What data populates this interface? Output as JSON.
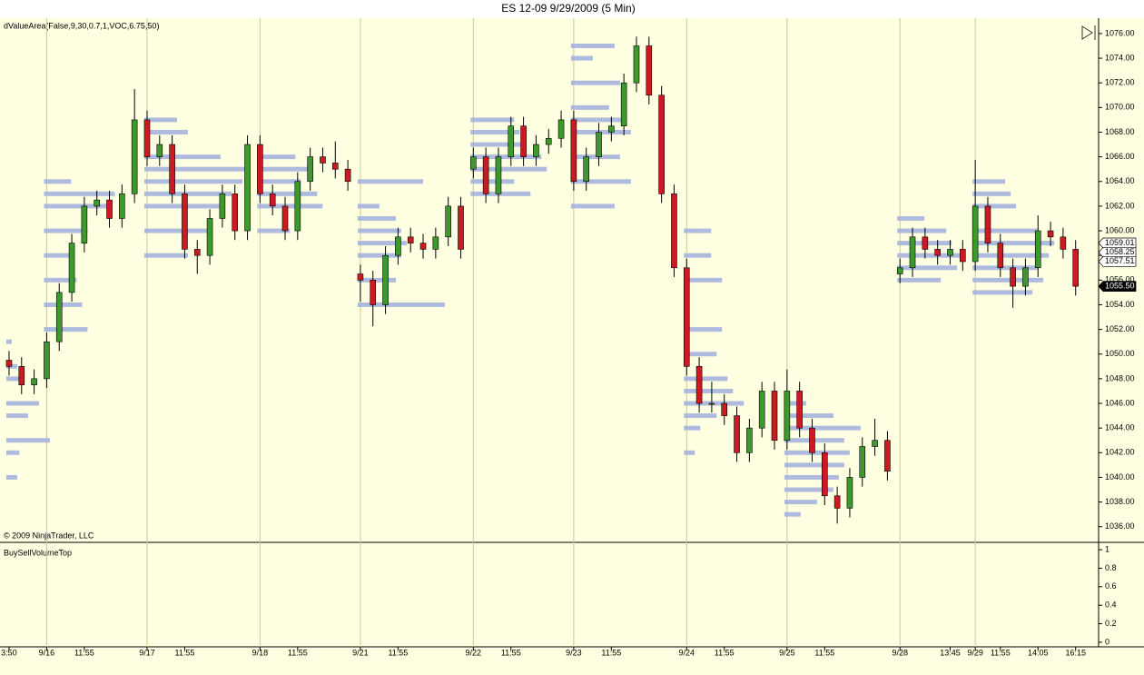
{
  "chart_data": {
    "type": "candlestick",
    "title": "ES 12-09  9/29/2009 (5 Min)",
    "indicator_label": "dValueArea(False,9,30,0.7,1,VOC,6.75,50)",
    "copyright": "© 2009 NinjaTrader, LLC",
    "up_color": "#3c9a2c",
    "down_color": "#cc1a22",
    "profile_color": "#a2b0de",
    "ohlc": [
      [
        1049.5,
        1050.25,
        1048.25,
        1049
      ],
      [
        1049,
        1049.75,
        1046.75,
        1047.5
      ],
      [
        1047.5,
        1048.75,
        1046.75,
        1048
      ],
      [
        1048,
        1051.75,
        1047.25,
        1051
      ],
      [
        1051,
        1055.75,
        1050.25,
        1055
      ],
      [
        1055,
        1059.75,
        1054.25,
        1059
      ],
      [
        1059,
        1062.75,
        1058.25,
        1062
      ],
      [
        1062,
        1063.25,
        1061.25,
        1062.5
      ],
      [
        1062.5,
        1063.25,
        1060.25,
        1061
      ],
      [
        1061,
        1063.75,
        1060.25,
        1063
      ],
      [
        1063,
        1071.5,
        1062.25,
        1069
      ],
      [
        1069,
        1069.75,
        1065.25,
        1066
      ],
      [
        1066,
        1067.75,
        1065.25,
        1067
      ],
      [
        1067,
        1067.75,
        1062.25,
        1063
      ],
      [
        1063,
        1063.75,
        1057.75,
        1058.5
      ],
      [
        1058.5,
        1059.25,
        1056.5,
        1058
      ],
      [
        1058,
        1061.75,
        1057.25,
        1061
      ],
      [
        1061,
        1063.75,
        1060.25,
        1063
      ],
      [
        1063,
        1063.75,
        1059.25,
        1060
      ],
      [
        1060,
        1067.75,
        1059.25,
        1067
      ],
      [
        1067,
        1067.75,
        1062.25,
        1063
      ],
      [
        1063,
        1063.75,
        1061.25,
        1062
      ],
      [
        1062,
        1062.75,
        1059.25,
        1060
      ],
      [
        1060,
        1064.75,
        1059.25,
        1064
      ],
      [
        1064,
        1066.75,
        1063.25,
        1066
      ],
      [
        1066,
        1066.75,
        1064.75,
        1065.5
      ],
      [
        1065.5,
        1067.25,
        1064.25,
        1065
      ],
      [
        1065,
        1065.75,
        1063.25,
        1064
      ],
      [
        1056.5,
        1057.25,
        1054.25,
        1056
      ],
      [
        1056,
        1056.75,
        1052.25,
        1054
      ],
      [
        1054,
        1058.75,
        1053.25,
        1058
      ],
      [
        1058,
        1060.25,
        1057.25,
        1059.5
      ],
      [
        1059.5,
        1060.25,
        1058.25,
        1059
      ],
      [
        1059,
        1059.75,
        1057.75,
        1058.5
      ],
      [
        1058.5,
        1060.25,
        1057.75,
        1059.5
      ],
      [
        1059.5,
        1062.75,
        1058.75,
        1062
      ],
      [
        1062,
        1062.75,
        1057.75,
        1058.5
      ],
      [
        1065,
        1066.75,
        1064.25,
        1066
      ],
      [
        1066,
        1066.75,
        1062.25,
        1063
      ],
      [
        1063,
        1066.75,
        1062.25,
        1066
      ],
      [
        1066,
        1069.25,
        1065.25,
        1068.5
      ],
      [
        1068.5,
        1069.25,
        1065.25,
        1066
      ],
      [
        1066,
        1067.75,
        1065.25,
        1067
      ],
      [
        1067,
        1068.25,
        1066.25,
        1067.5
      ],
      [
        1067.5,
        1069.75,
        1066.75,
        1069
      ],
      [
        1069,
        1069.75,
        1063.25,
        1064
      ],
      [
        1064,
        1066.75,
        1063.25,
        1066
      ],
      [
        1066,
        1068.75,
        1065.25,
        1068
      ],
      [
        1068,
        1069.25,
        1067.25,
        1068.5
      ],
      [
        1068.5,
        1072.75,
        1067.75,
        1072
      ],
      [
        1072,
        1075.75,
        1071.25,
        1075
      ],
      [
        1075,
        1075.75,
        1070.25,
        1071
      ],
      [
        1071,
        1071.75,
        1062.25,
        1063
      ],
      [
        1063,
        1063.75,
        1056.25,
        1057
      ],
      [
        1057,
        1057.75,
        1048.25,
        1049
      ],
      [
        1049,
        1049.75,
        1045.25,
        1046
      ],
      [
        1046,
        1047.75,
        1045.25,
        1046
      ],
      [
        1046,
        1046.75,
        1044.25,
        1045
      ],
      [
        1045,
        1045.75,
        1041.25,
        1042
      ],
      [
        1042,
        1044.75,
        1041.25,
        1044
      ],
      [
        1044,
        1047.75,
        1043.25,
        1047
      ],
      [
        1047,
        1047.75,
        1042.25,
        1043
      ],
      [
        1043,
        1048.75,
        1042.25,
        1047
      ],
      [
        1047,
        1047.75,
        1043.25,
        1044
      ],
      [
        1044,
        1044.75,
        1041.25,
        1042
      ],
      [
        1042,
        1042.75,
        1037.75,
        1038.5
      ],
      [
        1038.5,
        1039.25,
        1036.25,
        1037.5
      ],
      [
        1037.5,
        1040.75,
        1036.75,
        1040
      ],
      [
        1040,
        1043.25,
        1039.25,
        1042.5
      ],
      [
        1042.5,
        1044.75,
        1041.75,
        1043
      ],
      [
        1043,
        1043.75,
        1039.75,
        1040.5
      ],
      [
        1056.5,
        1057.75,
        1055.75,
        1057
      ],
      [
        1057,
        1060.25,
        1056.25,
        1059.5
      ],
      [
        1059.5,
        1060.25,
        1057.75,
        1058.5
      ],
      [
        1058.5,
        1059.25,
        1057.25,
        1058
      ],
      [
        1058,
        1059.25,
        1057.25,
        1058.5
      ],
      [
        1058.5,
        1059.25,
        1056.75,
        1057.5
      ],
      [
        1057.5,
        1065.75,
        1056.75,
        1062
      ],
      [
        1062,
        1062.75,
        1058.25,
        1059
      ],
      [
        1059,
        1059.75,
        1056.25,
        1057
      ],
      [
        1057,
        1057.75,
        1053.75,
        1055.5
      ],
      [
        1055.5,
        1057.75,
        1054.75,
        1057
      ],
      [
        1057,
        1061.25,
        1056.25,
        1060
      ],
      [
        1060,
        1060.75,
        1058.75,
        1059.5
      ],
      [
        1059.5,
        1060.25,
        1057.75,
        1058.5
      ],
      [
        1058.5,
        1059.25,
        1054.75,
        1055.5
      ]
    ],
    "profiles": [
      {
        "start": 0,
        "prices": [
          1040,
          1042,
          1043,
          1045,
          1046,
          1048,
          1049,
          1051
        ],
        "volumes": [
          10,
          12,
          40,
          20,
          30,
          15,
          10,
          5
        ]
      },
      {
        "start": 3,
        "prices": [
          1052,
          1054,
          1056,
          1058,
          1060,
          1062,
          1063,
          1064
        ],
        "volumes": [
          40,
          35,
          30,
          25,
          40,
          60,
          65,
          25
        ]
      },
      {
        "start": 11,
        "prices": [
          1058,
          1060,
          1062,
          1063,
          1064,
          1065,
          1066,
          1068,
          1069
        ],
        "volumes": [
          40,
          60,
          70,
          80,
          90,
          95,
          70,
          40,
          30
        ]
      },
      {
        "start": 20,
        "prices": [
          1060,
          1062,
          1063,
          1064,
          1065,
          1066
        ],
        "volumes": [
          30,
          60,
          55,
          40,
          50,
          35
        ]
      },
      {
        "start": 28,
        "prices": [
          1054,
          1056,
          1058,
          1059,
          1060,
          1061,
          1062,
          1064
        ],
        "volumes": [
          80,
          35,
          40,
          45,
          40,
          35,
          20,
          60
        ]
      },
      {
        "start": 37,
        "prices": [
          1063,
          1064,
          1065,
          1066,
          1067,
          1068,
          1069
        ],
        "volumes": [
          55,
          40,
          70,
          65,
          50,
          45,
          40
        ]
      },
      {
        "start": 45,
        "prices": [
          1062,
          1064,
          1066,
          1068,
          1069,
          1070,
          1072,
          1074,
          1075
        ],
        "volumes": [
          40,
          55,
          45,
          55,
          50,
          35,
          45,
          20,
          40
        ]
      },
      {
        "start": 54,
        "prices": [
          1042,
          1044,
          1045,
          1046,
          1047,
          1048,
          1050,
          1052,
          1056,
          1058,
          1060
        ],
        "volumes": [
          10,
          15,
          30,
          55,
          45,
          40,
          30,
          35,
          35,
          25,
          25
        ]
      },
      {
        "start": 62,
        "prices": [
          1037,
          1038,
          1039,
          1040,
          1041,
          1042,
          1043,
          1044,
          1045,
          1046
        ],
        "volumes": [
          15,
          30,
          45,
          50,
          55,
          60,
          55,
          70,
          45,
          20
        ]
      },
      {
        "start": 71,
        "prices": [
          1056,
          1057,
          1058,
          1059,
          1060,
          1061
        ],
        "volumes": [
          40,
          55,
          60,
          50,
          45,
          25
        ]
      },
      {
        "start": 77,
        "prices": [
          1055,
          1056,
          1057,
          1058,
          1059,
          1060,
          1062,
          1063,
          1064
        ],
        "volumes": [
          55,
          65,
          60,
          70,
          75,
          60,
          40,
          35,
          30
        ]
      }
    ],
    "xlim": [
      -0.72,
      86.83
    ],
    "xticks": [
      {
        "value": 0,
        "label": "3:50"
      },
      {
        "value": 3,
        "label": "9/16"
      },
      {
        "value": 6,
        "label": "11:55"
      },
      {
        "value": 11,
        "label": "9/17"
      },
      {
        "value": 14,
        "label": "11:55"
      },
      {
        "value": 20,
        "label": "9/18"
      },
      {
        "value": 23,
        "label": "11:55"
      },
      {
        "value": 28,
        "label": "9/21"
      },
      {
        "value": 31,
        "label": "11:55"
      },
      {
        "value": 37,
        "label": "9/22"
      },
      {
        "value": 40,
        "label": "11:55"
      },
      {
        "value": 45,
        "label": "9/23"
      },
      {
        "value": 48,
        "label": "11:55"
      },
      {
        "value": 54,
        "label": "9/24"
      },
      {
        "value": 57,
        "label": "11:55"
      },
      {
        "value": 62,
        "label": "9/25"
      },
      {
        "value": 65,
        "label": "11:55"
      },
      {
        "value": 71,
        "label": "9/28"
      },
      {
        "value": 75,
        "label": "13:45"
      },
      {
        "value": 77,
        "label": "9/29"
      },
      {
        "value": 79,
        "label": "11:55"
      },
      {
        "value": 82,
        "label": "14:05"
      },
      {
        "value": 85,
        "label": "16:15"
      }
    ],
    "ylim": [
      1034.8,
      1077.1
    ],
    "yticks": [
      {
        "value": 1036,
        "label": "1036.00"
      },
      {
        "value": 1038,
        "label": "1038.00"
      },
      {
        "value": 1040,
        "label": "1040.00"
      },
      {
        "value": 1042,
        "label": "1042.00"
      },
      {
        "value": 1044,
        "label": "1044.00"
      },
      {
        "value": 1046,
        "label": "1046.00"
      },
      {
        "value": 1048,
        "label": "1048.00"
      },
      {
        "value": 1050,
        "label": "1050.00"
      },
      {
        "value": 1052,
        "label": "1052.00"
      },
      {
        "value": 1054,
        "label": "1054.00"
      },
      {
        "value": 1056,
        "label": "1056.00"
      },
      {
        "value": 1058,
        "label": "1058.00"
      },
      {
        "value": 1060,
        "label": "1060.00"
      },
      {
        "value": 1062,
        "label": "1062.00"
      },
      {
        "value": 1064,
        "label": "1064.00"
      },
      {
        "value": 1066,
        "label": "1066.00"
      },
      {
        "value": 1068,
        "label": "1068.00"
      },
      {
        "value": 1070,
        "label": "1070.00"
      },
      {
        "value": 1072,
        "label": "1072.00"
      },
      {
        "value": 1074,
        "label": "1074.00"
      },
      {
        "value": 1076,
        "label": "1076.00"
      }
    ],
    "price_markers": [
      1059.01,
      1058.25,
      1057.51,
      {
        "value": 1055.5,
        "label": "1055.50"
      }
    ],
    "lower_panel": {
      "label": "BuySellVolumeTop",
      "ylim": [
        -0.05,
        1.05
      ],
      "yticks": [
        0,
        0.2,
        0.4,
        0.6,
        0.8,
        1
      ]
    }
  }
}
